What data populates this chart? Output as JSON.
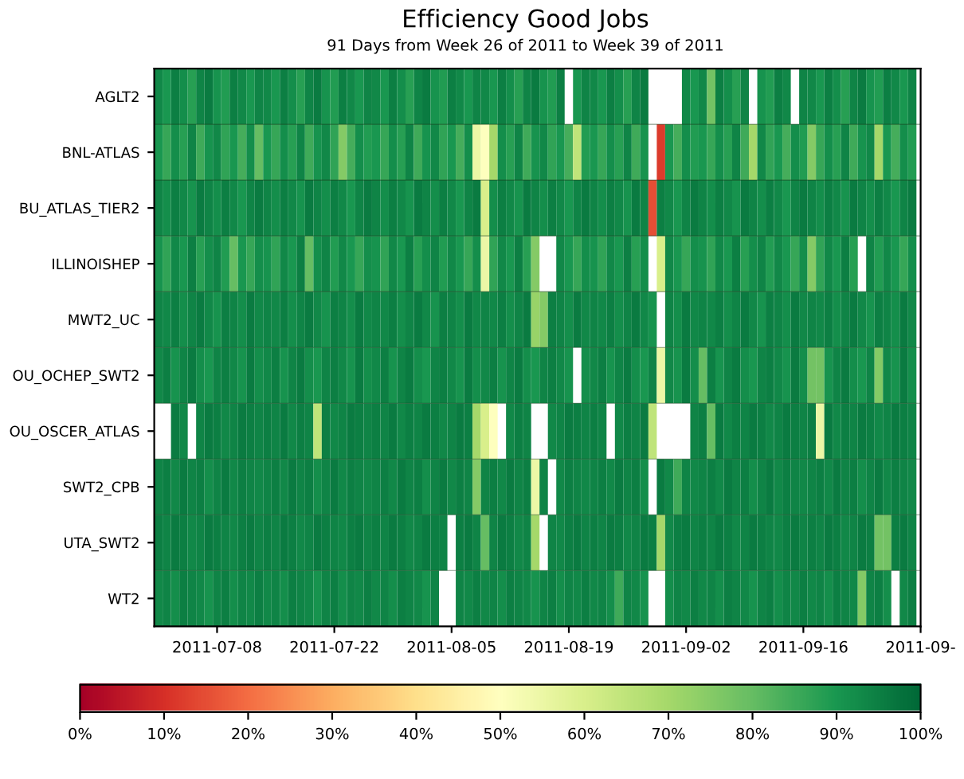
{
  "chart_data": {
    "type": "heatmap",
    "title": "Efficiency Good Jobs",
    "subtitle": "91 Days from Week 26 of 2011 to Week 39 of 2011",
    "x": [
      "2011-07-01",
      "2011-07-02",
      "2011-07-03",
      "2011-07-04",
      "2011-07-05",
      "2011-07-06",
      "2011-07-07",
      "2011-07-08",
      "2011-07-09",
      "2011-07-10",
      "2011-07-11",
      "2011-07-12",
      "2011-07-13",
      "2011-07-14",
      "2011-07-15",
      "2011-07-16",
      "2011-07-17",
      "2011-07-18",
      "2011-07-19",
      "2011-07-20",
      "2011-07-21",
      "2011-07-22",
      "2011-07-23",
      "2011-07-24",
      "2011-07-25",
      "2011-07-26",
      "2011-07-27",
      "2011-07-28",
      "2011-07-29",
      "2011-07-30",
      "2011-07-31",
      "2011-08-01",
      "2011-08-02",
      "2011-08-03",
      "2011-08-04",
      "2011-08-05",
      "2011-08-06",
      "2011-08-07",
      "2011-08-08",
      "2011-08-09",
      "2011-08-10",
      "2011-08-11",
      "2011-08-12",
      "2011-08-13",
      "2011-08-14",
      "2011-08-15",
      "2011-08-16",
      "2011-08-17",
      "2011-08-18",
      "2011-08-19",
      "2011-08-20",
      "2011-08-21",
      "2011-08-22",
      "2011-08-23",
      "2011-08-24",
      "2011-08-25",
      "2011-08-26",
      "2011-08-27",
      "2011-08-28",
      "2011-08-29",
      "2011-08-30",
      "2011-08-31",
      "2011-09-01",
      "2011-09-02",
      "2011-09-03",
      "2011-09-04",
      "2011-09-05",
      "2011-09-06",
      "2011-09-07",
      "2011-09-08",
      "2011-09-09",
      "2011-09-10",
      "2011-09-11",
      "2011-09-12",
      "2011-09-13",
      "2011-09-14",
      "2011-09-15",
      "2011-09-16",
      "2011-09-17",
      "2011-09-18",
      "2011-09-19",
      "2011-09-20",
      "2011-09-21",
      "2011-09-22",
      "2011-09-23",
      "2011-09-24",
      "2011-09-25",
      "2011-09-26",
      "2011-09-27",
      "2011-09-28",
      "2011-09-29"
    ],
    "y_categories": [
      "AGLT2",
      "BNL-ATLAS",
      "BU_ATLAS_TIER2",
      "ILLINOISHEP",
      "MWT2_UC",
      "OU_OCHEP_SWT2",
      "OU_OSCER_ATLAS",
      "SWT2_CPB",
      "UTA_SWT2",
      "WT2"
    ],
    "cells": [
      [
        93,
        90,
        95,
        92,
        88,
        94,
        96,
        91,
        89,
        95,
        93,
        90,
        94,
        93,
        90,
        95,
        92,
        88,
        94,
        96,
        91,
        89,
        95,
        93,
        90,
        94,
        93,
        90,
        95,
        92,
        88,
        94,
        96,
        91,
        89,
        95,
        93,
        90,
        94,
        93,
        90,
        95,
        92,
        88,
        94,
        96,
        91,
        89,
        95,
        null,
        90,
        94,
        93,
        90,
        95,
        92,
        88,
        94,
        96,
        null,
        null,
        null,
        null,
        93,
        90,
        93,
        78,
        95,
        92,
        88,
        94,
        null,
        91,
        89,
        95,
        93,
        null,
        94,
        93,
        90,
        95,
        92,
        88,
        94,
        96,
        91,
        89,
        95,
        93,
        90,
        94
      ],
      [
        90,
        86,
        92,
        88,
        94,
        85,
        91,
        93,
        87,
        90,
        84,
        92,
        80,
        90,
        86,
        92,
        88,
        94,
        85,
        91,
        93,
        87,
        75,
        84,
        92,
        89,
        90,
        86,
        92,
        88,
        94,
        85,
        91,
        93,
        87,
        90,
        84,
        92,
        55,
        50,
        70,
        92,
        88,
        94,
        85,
        91,
        93,
        87,
        90,
        84,
        65,
        89,
        90,
        86,
        92,
        88,
        94,
        85,
        91,
        null,
        12,
        90,
        84,
        92,
        89,
        90,
        86,
        92,
        88,
        94,
        85,
        70,
        93,
        87,
        90,
        84,
        92,
        89,
        75,
        86,
        92,
        88,
        94,
        85,
        91,
        93,
        70,
        90,
        84,
        92,
        89
      ],
      [
        94,
        92,
        95,
        93,
        91,
        96,
        94,
        92,
        95,
        93,
        90,
        94,
        96,
        94,
        92,
        95,
        93,
        91,
        96,
        94,
        92,
        95,
        93,
        90,
        94,
        96,
        94,
        92,
        95,
        93,
        91,
        96,
        94,
        92,
        95,
        93,
        90,
        94,
        96,
        60,
        92,
        95,
        93,
        91,
        96,
        94,
        92,
        95,
        93,
        90,
        94,
        96,
        94,
        92,
        95,
        93,
        91,
        96,
        94,
        15,
        95,
        93,
        90,
        94,
        96,
        94,
        92,
        95,
        93,
        91,
        96,
        94,
        92,
        95,
        93,
        90,
        94,
        96,
        94,
        92,
        95,
        93,
        91,
        96,
        94,
        92,
        95,
        93,
        90,
        94,
        96
      ],
      [
        91,
        87,
        93,
        90,
        95,
        88,
        92,
        94,
        89,
        80,
        90,
        86,
        92,
        91,
        87,
        93,
        90,
        95,
        80,
        92,
        94,
        89,
        93,
        90,
        86,
        92,
        91,
        87,
        93,
        90,
        95,
        88,
        92,
        94,
        89,
        93,
        90,
        86,
        92,
        55,
        87,
        93,
        90,
        95,
        88,
        75,
        null,
        null,
        93,
        90,
        86,
        92,
        91,
        87,
        93,
        90,
        95,
        88,
        92,
        null,
        60,
        93,
        90,
        86,
        92,
        91,
        87,
        93,
        90,
        95,
        88,
        92,
        94,
        89,
        93,
        90,
        86,
        92,
        75,
        87,
        93,
        90,
        95,
        88,
        null,
        94,
        89,
        93,
        90,
        86,
        92
      ],
      [
        94,
        93,
        95,
        92,
        94,
        96,
        93,
        91,
        95,
        94,
        92,
        96,
        93,
        94,
        93,
        95,
        92,
        94,
        96,
        93,
        91,
        95,
        94,
        92,
        96,
        93,
        94,
        93,
        95,
        92,
        94,
        96,
        93,
        91,
        95,
        94,
        92,
        96,
        93,
        94,
        93,
        95,
        92,
        94,
        96,
        72,
        75,
        95,
        94,
        92,
        96,
        93,
        94,
        93,
        95,
        92,
        94,
        96,
        93,
        91,
        null,
        94,
        92,
        96,
        93,
        94,
        93,
        95,
        92,
        94,
        96,
        93,
        91,
        95,
        94,
        92,
        96,
        93,
        94,
        93,
        95,
        92,
        94,
        96,
        93,
        91,
        95,
        94,
        92,
        96,
        93
      ],
      [
        93,
        95,
        91,
        94,
        96,
        92,
        90,
        94,
        95,
        93,
        91,
        96,
        92,
        93,
        95,
        91,
        94,
        96,
        92,
        90,
        94,
        95,
        93,
        91,
        96,
        92,
        93,
        95,
        91,
        94,
        96,
        92,
        90,
        94,
        95,
        93,
        91,
        96,
        92,
        93,
        95,
        91,
        94,
        96,
        92,
        90,
        94,
        95,
        93,
        91,
        null,
        92,
        93,
        95,
        91,
        94,
        96,
        92,
        90,
        94,
        55,
        93,
        91,
        96,
        92,
        80,
        95,
        91,
        94,
        96,
        92,
        90,
        94,
        95,
        93,
        91,
        96,
        92,
        78,
        78,
        91,
        94,
        96,
        92,
        90,
        94,
        75,
        93,
        91,
        96,
        92
      ],
      [
        null,
        null,
        96,
        93,
        null,
        94,
        96,
        95,
        93,
        94,
        96,
        95,
        94,
        95,
        94,
        96,
        93,
        95,
        94,
        65,
        95,
        93,
        94,
        96,
        95,
        94,
        95,
        94,
        96,
        93,
        95,
        94,
        96,
        95,
        93,
        94,
        96,
        95,
        70,
        60,
        50,
        null,
        93,
        95,
        94,
        null,
        null,
        93,
        94,
        96,
        95,
        94,
        95,
        94,
        null,
        93,
        95,
        94,
        96,
        65,
        null,
        null,
        null,
        null,
        94,
        95,
        80,
        96,
        93,
        95,
        94,
        96,
        95,
        93,
        94,
        96,
        95,
        94,
        95,
        55,
        96,
        93,
        95,
        94,
        96,
        95,
        93,
        94,
        96,
        95,
        94
      ],
      [
        94,
        95,
        93,
        96,
        94,
        95,
        92,
        94,
        96,
        93,
        95,
        94,
        93,
        94,
        95,
        93,
        96,
        94,
        95,
        92,
        94,
        96,
        93,
        95,
        94,
        93,
        94,
        95,
        93,
        96,
        94,
        95,
        92,
        94,
        96,
        93,
        95,
        94,
        75,
        94,
        95,
        93,
        96,
        94,
        95,
        55,
        94,
        null,
        93,
        95,
        94,
        93,
        94,
        95,
        93,
        96,
        94,
        95,
        92,
        null,
        96,
        93,
        85,
        94,
        93,
        94,
        95,
        93,
        96,
        94,
        95,
        92,
        94,
        96,
        93,
        95,
        94,
        93,
        94,
        95,
        93,
        96,
        94,
        95,
        92,
        94,
        96,
        93,
        95,
        94,
        93
      ],
      [
        95,
        94,
        96,
        95,
        93,
        94,
        96,
        95,
        94,
        93,
        95,
        96,
        94,
        95,
        94,
        96,
        95,
        93,
        94,
        96,
        95,
        94,
        93,
        95,
        96,
        94,
        95,
        94,
        96,
        95,
        93,
        94,
        96,
        95,
        94,
        null,
        95,
        96,
        94,
        80,
        94,
        96,
        95,
        93,
        94,
        70,
        null,
        94,
        93,
        95,
        96,
        94,
        95,
        94,
        96,
        95,
        93,
        94,
        96,
        95,
        70,
        93,
        95,
        96,
        94,
        95,
        94,
        96,
        95,
        93,
        94,
        96,
        95,
        94,
        93,
        95,
        96,
        94,
        95,
        94,
        96,
        95,
        93,
        94,
        96,
        95,
        78,
        78,
        95,
        96,
        94
      ],
      [
        93,
        94,
        92,
        95,
        94,
        93,
        91,
        94,
        95,
        92,
        94,
        93,
        95,
        93,
        94,
        92,
        95,
        94,
        93,
        91,
        94,
        95,
        92,
        94,
        93,
        95,
        93,
        94,
        92,
        95,
        94,
        93,
        91,
        94,
        null,
        null,
        94,
        93,
        95,
        93,
        94,
        92,
        95,
        94,
        93,
        91,
        94,
        95,
        92,
        94,
        93,
        95,
        93,
        94,
        92,
        85,
        94,
        93,
        91,
        null,
        null,
        92,
        94,
        93,
        95,
        93,
        94,
        92,
        95,
        94,
        93,
        91,
        94,
        95,
        92,
        94,
        93,
        95,
        93,
        94,
        92,
        95,
        94,
        93,
        75,
        94,
        95,
        92,
        null,
        93,
        95
      ]
    ],
    "xlim": [
      "2011-06-30T12:00",
      "2011-09-30"
    ],
    "xticks": [
      {
        "value": "2011-07-08",
        "label": "2011-07-08"
      },
      {
        "value": "2011-07-22",
        "label": "2011-07-22"
      },
      {
        "value": "2011-08-05",
        "label": "2011-08-05"
      },
      {
        "value": "2011-08-19",
        "label": "2011-08-19"
      },
      {
        "value": "2011-09-02",
        "label": "2011-09-02"
      },
      {
        "value": "2011-09-16",
        "label": "2011-09-16"
      },
      {
        "value": "2011-09-30",
        "label": "2011-09-"
      }
    ],
    "clim": [
      0,
      100
    ],
    "cticks": [
      {
        "value": 0,
        "label": "0%"
      },
      {
        "value": 10,
        "label": "10%"
      },
      {
        "value": 20,
        "label": "20%"
      },
      {
        "value": 30,
        "label": "30%"
      },
      {
        "value": 40,
        "label": "40%"
      },
      {
        "value": 50,
        "label": "50%"
      },
      {
        "value": 60,
        "label": "60%"
      },
      {
        "value": 70,
        "label": "70%"
      },
      {
        "value": 80,
        "label": "80%"
      },
      {
        "value": 90,
        "label": "90%"
      },
      {
        "value": 100,
        "label": "100%"
      }
    ]
  }
}
